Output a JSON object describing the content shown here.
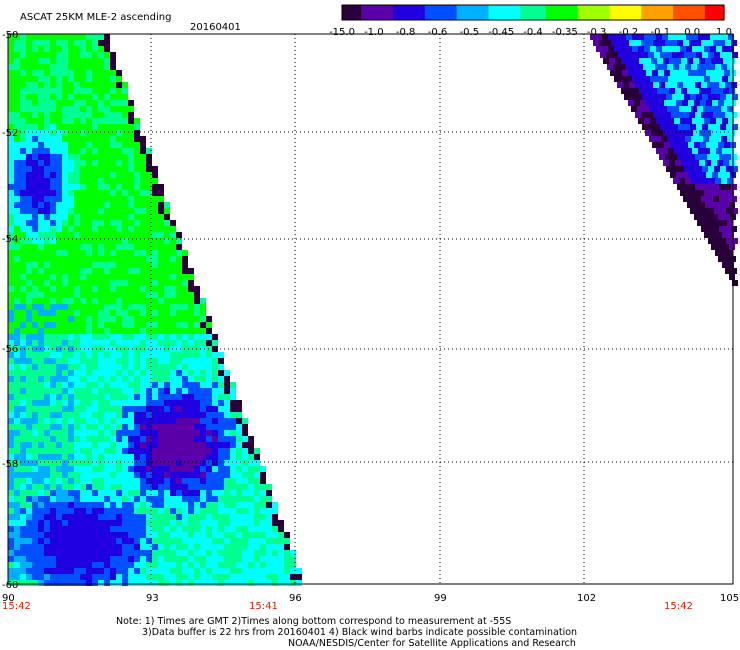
{
  "header": {
    "title": "ASCAT 25KM MLE-2 ascending",
    "date": "20160401"
  },
  "colorbar": {
    "labels": [
      "-15.0",
      "-1.0",
      "-0.8",
      "-0.6",
      "-0.5",
      "-0.45",
      "-0.4",
      "-0.35",
      "-0.3",
      "-0.2",
      "-0.1",
      "0.0",
      "1.0"
    ],
    "colors": [
      "#2a003a",
      "#5a00a8",
      "#2000e0",
      "#0050ff",
      "#00b0ff",
      "#00ffff",
      "#00ff90",
      "#00ff00",
      "#a0ff00",
      "#ffff00",
      "#ffa000",
      "#ff5000",
      "#ff0000"
    ]
  },
  "axes": {
    "lat_labels": [
      "-50",
      "-52",
      "-54",
      "-56",
      "-58",
      "-60"
    ],
    "lon_labels": [
      "90",
      "93",
      "96",
      "99",
      "102",
      "105"
    ],
    "times": [
      "15:42",
      "15:41",
      "15:42"
    ]
  },
  "notes": {
    "line1": "Note: 1) Times are GMT 2)Times along bottom correspond to measurement at -55S",
    "line2": "3)Data buffer is 22 hrs from 20160401 4) Black wind barbs indicate possible contamination",
    "line3": "NOAA/NESDIS/Center for Satellite Applications and Research"
  }
}
